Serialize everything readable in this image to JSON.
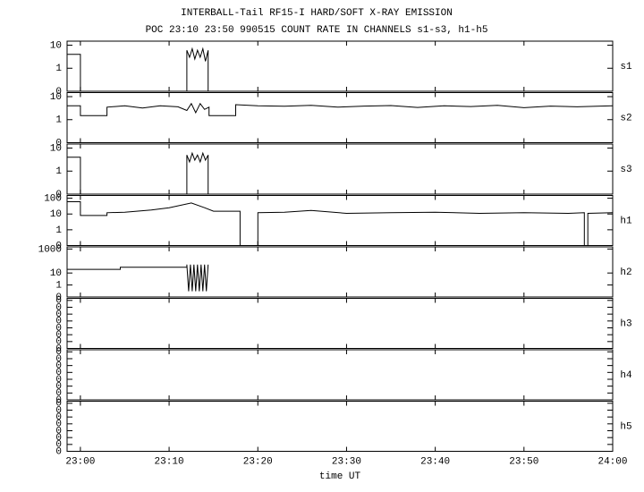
{
  "chart_data": [
    {
      "type": "line",
      "title": "INTERBALL-Tail RF15-I HARD/SOFT X-RAY EMISSION",
      "subtitle": "POC 23:10 23:50 990515  COUNT RATE IN CHANNELS s1-s3, h1-h5",
      "name": "s1",
      "yscale": "log",
      "ylim": [
        0.1,
        15
      ],
      "yticks": [
        {
          "value": 0.1,
          "label": "0"
        },
        1,
        10
      ],
      "xlim": [
        -1.5,
        60
      ],
      "x": [
        -1.5,
        0,
        0,
        12,
        12,
        12.3,
        12.6,
        12.9,
        13.2,
        13.5,
        13.8,
        14.1,
        14.4,
        14.4,
        60
      ],
      "values": [
        4,
        4,
        0,
        0,
        6,
        3,
        7,
        2.5,
        6,
        3,
        7,
        2,
        6,
        0,
        0
      ]
    },
    {
      "type": "line",
      "name": "s2",
      "yscale": "log",
      "ylim": [
        0.1,
        15
      ],
      "yticks": [
        {
          "value": 0.1,
          "label": "0"
        },
        1,
        10
      ],
      "xlim": [
        -1.5,
        60
      ],
      "x": [
        -1.5,
        0,
        0,
        3,
        3,
        5,
        7,
        9,
        11,
        12,
        12.5,
        13,
        13.5,
        14,
        14.5,
        14.5,
        17.5,
        17.5,
        20,
        23,
        26,
        29,
        32,
        35,
        38,
        41,
        44,
        47,
        50,
        53,
        56,
        60
      ],
      "values": [
        4,
        4,
        1.5,
        1.5,
        3.5,
        4,
        3.2,
        4,
        3.6,
        2.5,
        5,
        2,
        5,
        2.8,
        3.5,
        1.5,
        1.5,
        4.5,
        4,
        3.8,
        4.2,
        3.5,
        3.9,
        4.1,
        3.4,
        4,
        3.7,
        4.2,
        3.3,
        3.9,
        3.6,
        4
      ]
    },
    {
      "type": "line",
      "name": "s3",
      "yscale": "log",
      "ylim": [
        0.1,
        15
      ],
      "yticks": [
        {
          "value": 0.1,
          "label": "0"
        },
        1,
        10
      ],
      "xlim": [
        -1.5,
        60
      ],
      "x": [
        -1.5,
        0,
        0,
        12,
        12,
        12.3,
        12.6,
        12.9,
        13.2,
        13.5,
        13.8,
        14.1,
        14.4,
        14.4,
        60
      ],
      "values": [
        4,
        4,
        0,
        0,
        5,
        2.5,
        6,
        3,
        5,
        2.5,
        6,
        3,
        5,
        0,
        0
      ]
    },
    {
      "type": "line",
      "name": "h1",
      "yscale": "log",
      "ylim": [
        0.1,
        150
      ],
      "yticks": [
        {
          "value": 0.1,
          "label": "0"
        },
        1,
        10,
        100
      ],
      "xlim": [
        -1.5,
        60
      ],
      "x": [
        -1.5,
        0,
        0,
        3,
        3,
        5,
        8,
        10,
        12.5,
        14,
        15,
        15,
        18,
        18,
        20,
        20,
        23,
        26,
        30,
        35,
        40,
        45,
        50,
        55,
        56.8,
        56.8,
        57.2,
        57.2,
        60
      ],
      "values": [
        60,
        60,
        8,
        8,
        12,
        13,
        18,
        25,
        50,
        25,
        15,
        15,
        15,
        0,
        0,
        12,
        13,
        17,
        11,
        12,
        13,
        11,
        12,
        11,
        12,
        0,
        0,
        11,
        12
      ]
    },
    {
      "type": "line",
      "name": "h2",
      "yscale": "log",
      "ylim": [
        0.1,
        1500
      ],
      "yticks": [
        {
          "value": 0.1,
          "label": "0"
        },
        1,
        10,
        1000
      ],
      "xlim": [
        -1.5,
        60
      ],
      "x": [
        -1.5,
        4.5,
        4.5,
        12,
        12,
        12.2,
        12.4,
        12.6,
        12.8,
        13,
        13.2,
        13.4,
        13.6,
        13.8,
        14,
        14.2,
        14.4
      ],
      "values": [
        20,
        20,
        30,
        30,
        50,
        0.3,
        50,
        0.3,
        50,
        0.3,
        50,
        0.3,
        50,
        0.3,
        50,
        0.3,
        50
      ]
    },
    {
      "type": "line",
      "name": "h3",
      "yscale": "log",
      "ylim": [
        1e-08,
        0.2
      ],
      "yticks": [
        {
          "value": 1e-08,
          "label": "0"
        },
        {
          "value": 1e-07,
          "label": "0"
        },
        {
          "value": 1e-06,
          "label": "0"
        },
        {
          "value": 1e-05,
          "label": "0"
        },
        {
          "value": 0.0001,
          "label": "0"
        },
        {
          "value": 0.001,
          "label": "0"
        },
        {
          "value": 0.01,
          "label": "0"
        },
        {
          "value": 0.1,
          "label": "0"
        }
      ],
      "xlim": [
        -1.5,
        60
      ]
    },
    {
      "type": "line",
      "name": "h4",
      "yscale": "log",
      "ylim": [
        1e-08,
        0.2
      ],
      "yticks": [
        {
          "value": 1e-08,
          "label": "0"
        },
        {
          "value": 1e-07,
          "label": "0"
        },
        {
          "value": 1e-06,
          "label": "0"
        },
        {
          "value": 1e-05,
          "label": "0"
        },
        {
          "value": 0.0001,
          "label": "0"
        },
        {
          "value": 0.001,
          "label": "0"
        },
        {
          "value": 0.01,
          "label": "0"
        },
        {
          "value": 0.1,
          "label": "0"
        }
      ],
      "xlim": [
        -1.5,
        60
      ]
    },
    {
      "type": "line",
      "name": "h5",
      "yscale": "log",
      "ylim": [
        1e-08,
        0.2
      ],
      "yticks": [
        {
          "value": 1e-08,
          "label": "0"
        },
        {
          "value": 1e-07,
          "label": "0"
        },
        {
          "value": 1e-06,
          "label": "0"
        },
        {
          "value": 1e-05,
          "label": "0"
        },
        {
          "value": 0.0001,
          "label": "0"
        },
        {
          "value": 0.001,
          "label": "0"
        },
        {
          "value": 0.01,
          "label": "0"
        },
        {
          "value": 0.1,
          "label": "0"
        }
      ],
      "xlim": [
        -1.5,
        60
      ],
      "x_label": "time UT",
      "xticks": [
        {
          "value": 0,
          "label": "23:00"
        },
        {
          "value": 10,
          "label": "23:10"
        },
        {
          "value": 20,
          "label": "23:20"
        },
        {
          "value": 30,
          "label": "23:30"
        },
        {
          "value": 40,
          "label": "23:40"
        },
        {
          "value": 50,
          "label": "23:50"
        },
        {
          "value": 60,
          "label": "24:00"
        }
      ]
    }
  ]
}
